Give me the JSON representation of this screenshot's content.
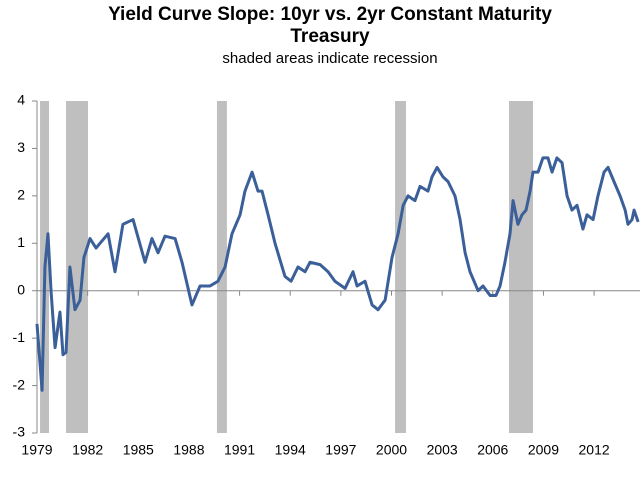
{
  "chart_data": {
    "type": "line",
    "title": "Yield Curve Slope: 10yr vs. 2yr Constant Maturity Treasury",
    "subtitle": "shaded areas indicate recession",
    "x": [
      1979.0,
      1979.3,
      1979.47,
      1979.65,
      1979.83,
      1980.07,
      1980.36,
      1980.54,
      1980.72,
      1980.95,
      1981.25,
      1981.55,
      1981.78,
      1982.14,
      1982.5,
      1982.73,
      1983.21,
      1983.62,
      1984.09,
      1984.69,
      1985.4,
      1985.81,
      1986.17,
      1986.58,
      1987.18,
      1987.59,
      1988.18,
      1988.66,
      1989.25,
      1989.72,
      1990.14,
      1990.55,
      1991.03,
      1991.32,
      1991.74,
      1992.09,
      1992.33,
      1992.69,
      1993.1,
      1993.69,
      1994.05,
      1994.46,
      1994.88,
      1995.17,
      1995.77,
      1996.24,
      1996.65,
      1997.25,
      1997.72,
      1997.96,
      1998.43,
      1998.85,
      1999.2,
      1999.62,
      2000.03,
      2000.39,
      2000.69,
      2000.98,
      2001.39,
      2001.69,
      2002.16,
      2002.4,
      2002.7,
      2003.05,
      2003.35,
      2003.76,
      2004.06,
      2004.36,
      2004.65,
      2005.13,
      2005.42,
      2005.84,
      2006.19,
      2006.43,
      2006.72,
      2007.02,
      2007.2,
      2007.49,
      2007.73,
      2007.97,
      2008.21,
      2008.38,
      2008.68,
      2008.97,
      2009.27,
      2009.51,
      2009.8,
      2010.1,
      2010.4,
      2010.69,
      2010.99,
      2011.34,
      2011.58,
      2011.94,
      2012.23,
      2012.59,
      2012.83,
      2013.18,
      2013.54,
      2013.84,
      2014.01,
      2014.25,
      2014.37,
      2014.61
    ],
    "series": [
      {
        "color": "#3a5f99",
        "values": [
          -0.7,
          -2.1,
          0.5,
          1.2,
          0.0,
          -1.2,
          -0.45,
          -1.35,
          -1.3,
          0.5,
          -0.4,
          -0.2,
          0.7,
          1.1,
          0.9,
          1.0,
          1.2,
          0.4,
          1.4,
          1.5,
          0.6,
          1.1,
          0.8,
          1.15,
          1.1,
          0.6,
          -0.3,
          0.1,
          0.1,
          0.2,
          0.5,
          1.2,
          1.6,
          2.1,
          2.5,
          2.1,
          2.1,
          1.6,
          1.0,
          0.3,
          0.2,
          0.5,
          0.4,
          0.6,
          0.55,
          0.4,
          0.2,
          0.05,
          0.4,
          0.1,
          0.2,
          -0.3,
          -0.4,
          -0.2,
          0.7,
          1.2,
          1.8,
          2.0,
          1.9,
          2.2,
          2.1,
          2.4,
          2.6,
          2.4,
          2.3,
          2.0,
          1.5,
          0.8,
          0.4,
          0.0,
          0.1,
          -0.1,
          -0.1,
          0.1,
          0.6,
          1.2,
          1.9,
          1.4,
          1.6,
          1.7,
          2.1,
          2.5,
          2.5,
          2.8,
          2.8,
          2.5,
          2.8,
          2.7,
          2.0,
          1.7,
          1.8,
          1.3,
          1.6,
          1.5,
          2.0,
          2.5,
          2.6,
          2.3,
          2.0,
          1.7,
          1.4,
          1.5,
          1.7,
          1.45
        ]
      }
    ],
    "recessions": [
      [
        1979.18,
        1979.71
      ],
      [
        1980.72,
        1982.02
      ],
      [
        1989.66,
        1990.25
      ],
      [
        2000.21,
        2000.86
      ],
      [
        2006.96,
        2008.38
      ]
    ],
    "recession_color": "#bfbfbf",
    "xlim": [
      1979,
      2014.72
    ],
    "xticks": [
      1979,
      1982,
      1985,
      1988,
      1991,
      1994,
      1997,
      2000,
      2003,
      2006,
      2009,
      2012
    ],
    "ylim": [
      -3,
      4
    ],
    "yticks": [
      -3,
      -2,
      -1,
      0,
      1,
      2,
      3,
      4
    ]
  }
}
